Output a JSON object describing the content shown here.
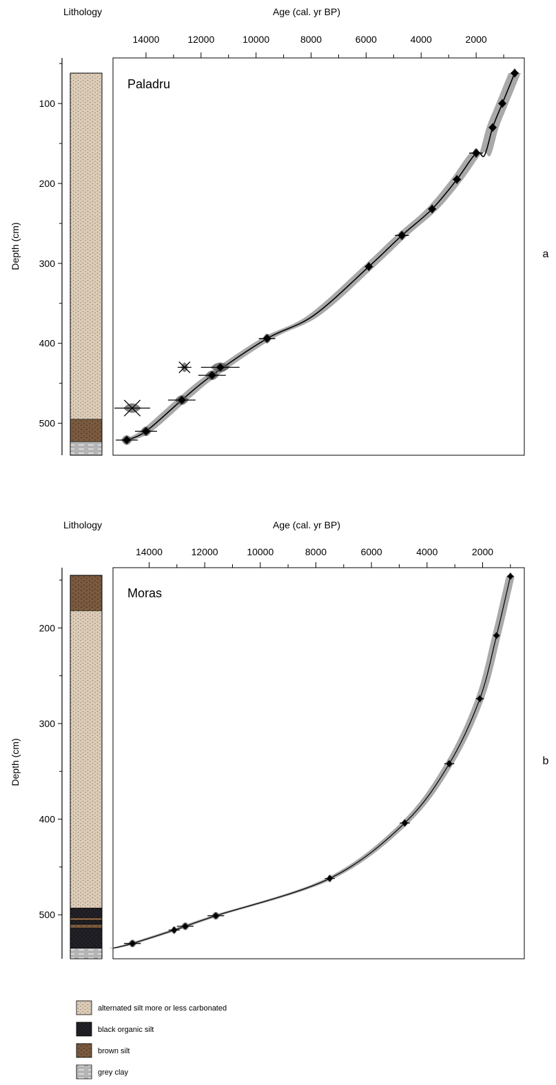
{
  "colors": {
    "silt": "#dccbb6",
    "brown": "#7a5a3f",
    "black": "#1c1c22",
    "clay": "#b4b4b4",
    "envelope": "#9a9a9a",
    "median": "#000000",
    "ink": "#000000"
  },
  "chart_data": [
    {
      "type": "scatter",
      "panel_letter": "a",
      "site": "Paladru",
      "lithology_label": "Lithology",
      "xlabel": "Age (cal. yr BP)",
      "ylabel": "Depth (cm)",
      "x_reversed": true,
      "xlim": [
        15200,
        250
      ],
      "ylim": [
        43,
        540
      ],
      "x_ticks": [
        14000,
        12000,
        10000,
        8000,
        6000,
        4000,
        2000
      ],
      "x_minor_ticks": [
        13000,
        11000,
        9000,
        7000,
        5000,
        3000,
        1000
      ],
      "y_ticks": [
        100,
        200,
        300,
        400,
        500
      ],
      "lithology": [
        {
          "facies": "alternated silt more or less carbonated",
          "top": 62,
          "bottom": 495
        },
        {
          "facies": "brown silt",
          "top": 495,
          "bottom": 523
        },
        {
          "facies": "grey clay",
          "top": 523,
          "bottom": 540
        }
      ],
      "age_model": [
        [
          600,
          62
        ],
        [
          1050,
          100
        ],
        [
          1400,
          130
        ],
        [
          1700,
          165
        ],
        [
          2000,
          162
        ],
        [
          2700,
          195
        ],
        [
          3600,
          232
        ],
        [
          4700,
          265
        ],
        [
          5900,
          304
        ],
        [
          7900,
          365
        ],
        [
          9600,
          394
        ],
        [
          11600,
          440
        ],
        [
          12700,
          471
        ],
        [
          14000,
          510
        ],
        [
          14700,
          521
        ]
      ],
      "envelope_halfwidth": 220,
      "dates": [
        {
          "age": 600,
          "depth": 62,
          "err": 150,
          "rejected": false
        },
        {
          "age": 1050,
          "depth": 100,
          "err": 120,
          "rejected": false
        },
        {
          "age": 1400,
          "depth": 130,
          "err": 120,
          "rejected": false
        },
        {
          "age": 2000,
          "depth": 162,
          "err": 250,
          "rejected": false
        },
        {
          "age": 2700,
          "depth": 195,
          "err": 150,
          "rejected": false
        },
        {
          "age": 3600,
          "depth": 232,
          "err": 150,
          "rejected": false
        },
        {
          "age": 4700,
          "depth": 265,
          "err": 250,
          "rejected": false
        },
        {
          "age": 5900,
          "depth": 304,
          "err": 150,
          "rejected": false
        },
        {
          "age": 9600,
          "depth": 394,
          "err": 300,
          "rejected": false
        },
        {
          "age": 11300,
          "depth": 430,
          "err": 700,
          "rejected": false
        },
        {
          "age": 11600,
          "depth": 440,
          "err": 500,
          "rejected": false
        },
        {
          "age": 12700,
          "depth": 471,
          "err": 500,
          "rejected": false
        },
        {
          "age": 14000,
          "depth": 510,
          "err": 400,
          "rejected": false
        },
        {
          "age": 14700,
          "depth": 521,
          "err": 400,
          "rejected": false
        },
        {
          "age": 12600,
          "depth": 430,
          "err": 250,
          "rejected": true
        },
        {
          "age": 14500,
          "depth": 481,
          "err": 650,
          "rejected": true
        }
      ]
    },
    {
      "type": "scatter",
      "panel_letter": "b",
      "site": "Moras",
      "lithology_label": "Lithology",
      "xlabel": "Age (cal. yr BP)",
      "ylabel": "Depth (cm)",
      "x_reversed": true,
      "xlim": [
        15300,
        500
      ],
      "ylim": [
        137,
        546
      ],
      "x_ticks": [
        14000,
        12000,
        10000,
        8000,
        6000,
        4000,
        2000
      ],
      "x_minor_ticks": [
        13000,
        11000,
        9000,
        7000,
        5000,
        3000,
        1000
      ],
      "y_ticks": [
        200,
        300,
        400,
        500
      ],
      "lithology": [
        {
          "facies": "brown silt",
          "top": 145,
          "bottom": 182
        },
        {
          "facies": "alternated silt more or less carbonated",
          "top": 182,
          "bottom": 493
        },
        {
          "facies": "black organic silt",
          "top": 493,
          "bottom": 503
        },
        {
          "facies": "brown silt",
          "top": 503,
          "bottom": 506
        },
        {
          "facies": "black organic silt",
          "top": 506,
          "bottom": 510
        },
        {
          "facies": "brown silt",
          "top": 510,
          "bottom": 514
        },
        {
          "facies": "black organic silt",
          "top": 514,
          "bottom": 535
        },
        {
          "facies": "grey clay",
          "top": 535,
          "bottom": 546
        }
      ],
      "age_model": [
        [
          1000,
          146
        ],
        [
          1500,
          208
        ],
        [
          2100,
          274
        ],
        [
          3200,
          342
        ],
        [
          4800,
          404
        ],
        [
          7500,
          462
        ],
        [
          11600,
          501
        ],
        [
          12700,
          512
        ],
        [
          13100,
          516
        ],
        [
          14600,
          530
        ],
        [
          15300,
          535
        ]
      ],
      "envelope_halfwidth": 150,
      "dates": [
        {
          "age": 1000,
          "depth": 146,
          "err": 120,
          "rejected": false
        },
        {
          "age": 1500,
          "depth": 208,
          "err": 120,
          "rejected": false
        },
        {
          "age": 2100,
          "depth": 274,
          "err": 150,
          "rejected": false
        },
        {
          "age": 3200,
          "depth": 342,
          "err": 180,
          "rejected": false
        },
        {
          "age": 4800,
          "depth": 404,
          "err": 180,
          "rejected": false
        },
        {
          "age": 7500,
          "depth": 462,
          "err": 180,
          "rejected": false
        },
        {
          "age": 11600,
          "depth": 501,
          "err": 300,
          "rejected": false
        },
        {
          "age": 12700,
          "depth": 512,
          "err": 300,
          "rejected": false
        },
        {
          "age": 13100,
          "depth": 516,
          "err": 200,
          "rejected": false
        },
        {
          "age": 14600,
          "depth": 530,
          "err": 300,
          "rejected": false
        }
      ]
    }
  ],
  "legend": [
    {
      "facies": "alternated silt more or less carbonated",
      "label": "alternated silt more or less carbonated"
    },
    {
      "facies": "black organic silt",
      "label": "black organic silt"
    },
    {
      "facies": "brown silt",
      "label": "brown silt"
    },
    {
      "facies": "grey clay",
      "label": "grey clay"
    }
  ]
}
